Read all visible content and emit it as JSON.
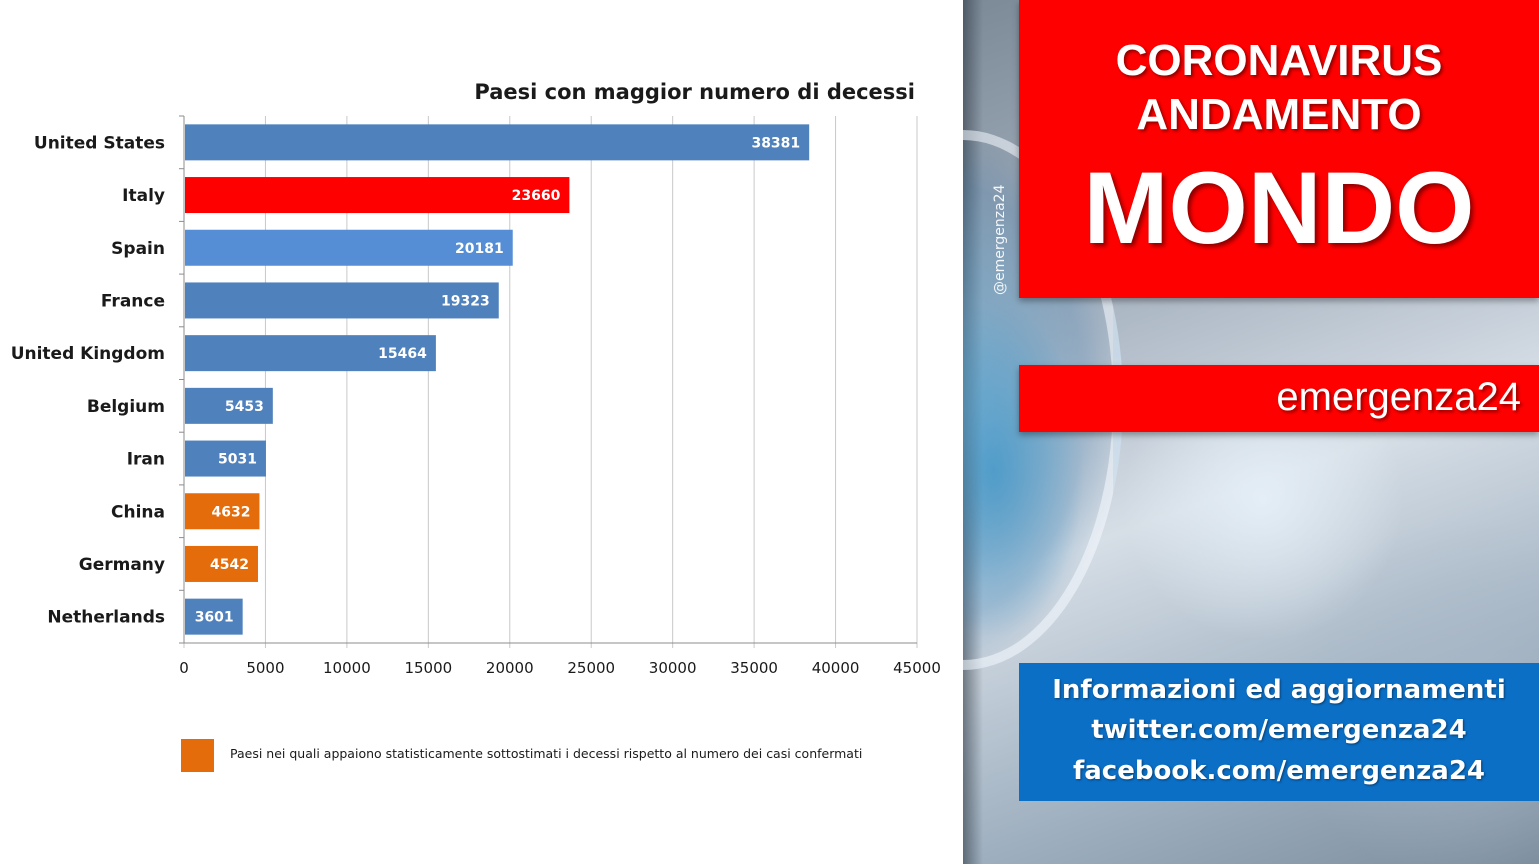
{
  "chart_data": {
    "type": "bar",
    "orientation": "horizontal",
    "title": "Paesi con maggior numero di decessi",
    "categories": [
      "United States",
      "Italy",
      "Spain",
      "France",
      "United Kingdom",
      "Belgium",
      "Iran",
      "China",
      "Germany",
      "Netherlands"
    ],
    "values": [
      38381,
      23660,
      20181,
      19323,
      15464,
      5453,
      5031,
      4632,
      4542,
      3601
    ],
    "bar_colors": [
      "#4f81bd",
      "#ff0000",
      "#558ed5",
      "#4f81bd",
      "#4f81bd",
      "#4f81bd",
      "#4f81bd",
      "#e46c0a",
      "#e46c0a",
      "#4f81bd"
    ],
    "xlim": [
      0,
      45000
    ],
    "xticks": [
      0,
      5000,
      10000,
      15000,
      20000,
      25000,
      30000,
      35000,
      40000,
      45000
    ],
    "grid": true,
    "legend": {
      "color": "#e46c0a",
      "label": "Paesi nei quali appaiono statisticamente sottostimati i decessi rispetto al numero dei casi confermati",
      "placement": "bottom-left"
    }
  },
  "sidebar": {
    "handle": "@emergenza24",
    "title_line1": "CORONAVIRUS",
    "title_line2": "ANDAMENTO",
    "title_main": "MONDO",
    "brand": "emergenza24",
    "info_line1": "Informazioni ed aggiornamenti",
    "info_line2": "twitter.com/emergenza24",
    "info_line3": "facebook.com/emergenza24",
    "colors": {
      "red": "#ff0000",
      "blue": "#0b6fc6"
    }
  }
}
